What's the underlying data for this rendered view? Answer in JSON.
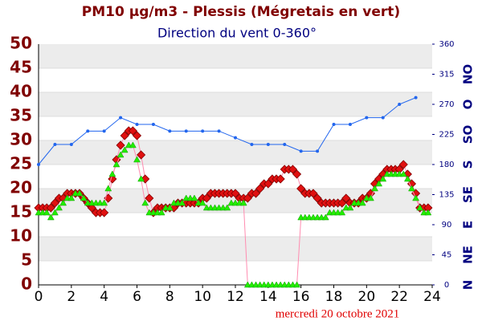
{
  "chart_data": {
    "type": "line",
    "title": "PM10 µg/m3 - Plessis (Mégretais en vert)",
    "subtitle": "Direction du vent 0-360°",
    "date_label": "mercredi 20 octobre 2021",
    "x": [
      0,
      0.25,
      0.5,
      0.75,
      1,
      1.25,
      1.5,
      1.75,
      2,
      2.25,
      2.5,
      2.75,
      3,
      3.25,
      3.5,
      3.75,
      4,
      4.25,
      4.5,
      4.75,
      5,
      5.25,
      5.5,
      5.75,
      6,
      6.25,
      6.5,
      6.75,
      7,
      7.25,
      7.5,
      7.75,
      8,
      8.25,
      8.5,
      8.75,
      9,
      9.25,
      9.5,
      9.75,
      10,
      10.25,
      10.5,
      10.75,
      11,
      11.25,
      11.5,
      11.75,
      12,
      12.25,
      12.5,
      12.75,
      13,
      13.25,
      13.5,
      13.75,
      14,
      14.25,
      14.5,
      14.75,
      15,
      15.25,
      15.5,
      15.75,
      16,
      16.25,
      16.5,
      16.75,
      17,
      17.25,
      17.5,
      17.75,
      18,
      18.25,
      18.5,
      18.75,
      19,
      19.25,
      19.5,
      19.75,
      20,
      20.25,
      20.5,
      20.75,
      21,
      21.25,
      21.5,
      21.75,
      22,
      22.25,
      22.5,
      22.75,
      23,
      23.25,
      23.5,
      23.75
    ],
    "line_color": "#ff8cb0",
    "series": [
      {
        "name": "Plessis",
        "color": "#e01010",
        "marker": "diamond",
        "values": [
          16,
          16,
          16,
          16,
          17,
          18,
          18,
          19,
          19,
          19,
          19,
          18,
          17,
          16,
          15,
          15,
          15,
          18,
          22,
          26,
          29,
          31,
          32,
          32,
          31,
          27,
          22,
          18,
          15,
          16,
          16,
          16,
          16,
          16,
          17,
          17,
          17,
          17,
          17,
          17,
          18,
          18,
          19,
          19,
          19,
          19,
          19,
          19,
          19,
          18,
          18,
          18,
          19,
          19,
          20,
          21,
          21,
          22,
          22,
          22,
          24,
          24,
          24,
          23,
          20,
          19,
          19,
          19,
          18,
          17,
          17,
          17,
          17,
          17,
          17,
          18,
          17,
          17,
          17,
          18,
          18,
          19,
          21,
          22,
          23,
          24,
          24,
          24,
          24,
          25,
          23,
          21,
          19,
          16,
          16,
          16
        ]
      },
      {
        "name": "Mégretais",
        "color": "#22ee00",
        "marker": "triangle",
        "values": [
          15,
          15,
          15,
          14,
          15,
          16,
          17,
          18,
          18,
          19,
          19,
          18,
          17,
          17,
          17,
          17,
          17,
          20,
          23,
          25,
          27,
          28,
          29,
          29,
          26,
          22,
          17,
          15,
          15,
          15,
          15,
          16,
          16,
          17,
          17,
          17,
          18,
          18,
          18,
          17,
          17,
          16,
          16,
          16,
          16,
          16,
          16,
          17,
          17,
          17,
          17,
          0,
          0,
          0,
          0,
          0,
          0,
          0,
          0,
          0,
          0,
          0,
          0,
          0,
          14,
          14,
          14,
          14,
          14,
          14,
          14,
          15,
          15,
          15,
          15,
          16,
          16,
          17,
          17,
          17,
          18,
          18,
          20,
          21,
          22,
          23,
          23,
          23,
          23,
          23,
          22,
          20,
          18,
          16,
          15,
          15
        ]
      },
      {
        "name": "Direction du vent",
        "color": "#2266ee",
        "marker": "dot",
        "axis": "y2",
        "x": [
          0,
          1,
          2,
          3,
          4,
          5,
          6,
          7,
          8,
          9,
          10,
          11,
          12,
          13,
          14,
          15,
          16,
          17,
          18,
          19,
          20,
          21,
          22,
          23
        ],
        "values": [
          180,
          210,
          210,
          230,
          230,
          250,
          240,
          240,
          230,
          230,
          230,
          230,
          220,
          210,
          210,
          210,
          200,
          200,
          240,
          240,
          250,
          250,
          270,
          280
        ]
      }
    ],
    "xlim": [
      0,
      24
    ],
    "xticks": [
      0,
      2,
      4,
      6,
      8,
      10,
      12,
      14,
      16,
      18,
      20,
      22,
      24
    ],
    "ylim": [
      0,
      50
    ],
    "yticks": [
      0,
      5,
      10,
      15,
      20,
      25,
      30,
      35,
      40,
      45,
      50
    ],
    "y2lim": [
      0,
      360
    ],
    "y2ticks": [
      0,
      45,
      90,
      135,
      180,
      225,
      270,
      315,
      360
    ],
    "compass_labels": [
      {
        "value": 0,
        "label": "N"
      },
      {
        "value": 45,
        "label": "NE"
      },
      {
        "value": 90,
        "label": "E"
      },
      {
        "value": 135,
        "label": "SE"
      },
      {
        "value": 180,
        "label": "S"
      },
      {
        "value": 225,
        "label": "SO"
      },
      {
        "value": 270,
        "label": "O"
      },
      {
        "value": 315,
        "label": "NO"
      }
    ],
    "grid": true
  }
}
